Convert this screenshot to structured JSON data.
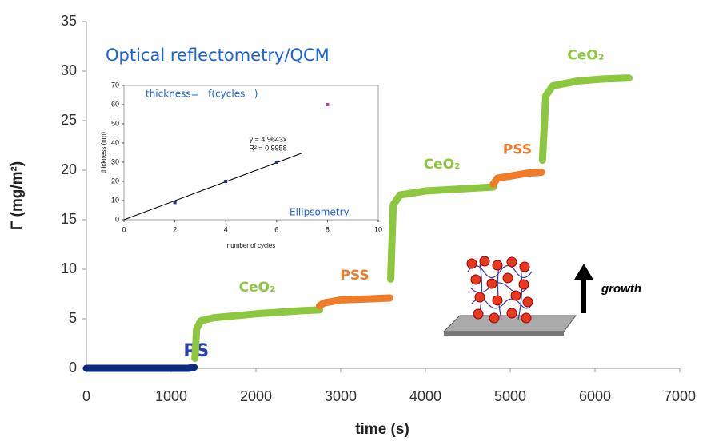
{
  "chart_data": [
    {
      "type": "line",
      "title": "Optical reflectometry/QCM",
      "x_label": "time (s)",
      "y_label": "Γ (mg/m²)",
      "xlim": [
        0,
        7000
      ],
      "xticks": [
        0,
        1000,
        2000,
        3000,
        4000,
        5000,
        6000,
        7000
      ],
      "ylim": [
        0,
        35
      ],
      "yticks": [
        0,
        5,
        10,
        15,
        20,
        25,
        30,
        35
      ],
      "annotations": [
        "growth"
      ],
      "series": [
        {
          "name": "PS",
          "color": "#0d2b7e",
          "x": [
            0,
            400,
            800,
            1200,
            1270
          ],
          "values": [
            0,
            0,
            0,
            0,
            0.1
          ]
        },
        {
          "name": "CeO₂",
          "color": "#8dc63f",
          "x": [
            1280,
            1300,
            1350,
            1500,
            2000,
            2500,
            2750
          ],
          "values": [
            1,
            4,
            4.8,
            5.1,
            5.5,
            5.8,
            5.9
          ]
        },
        {
          "name": "PSS",
          "color": "#f07c2a",
          "x": [
            2750,
            2800,
            3000,
            3300,
            3580
          ],
          "values": [
            6.3,
            6.6,
            6.9,
            7.0,
            7.1
          ]
        },
        {
          "name": "CeO₂",
          "color": "#8dc63f",
          "x": [
            3590,
            3620,
            3700,
            4000,
            4400,
            4800
          ],
          "values": [
            9,
            16.5,
            17.5,
            17.9,
            18.1,
            18.3
          ]
        },
        {
          "name": "PSS",
          "color": "#f07c2a",
          "x": [
            4800,
            4850,
            5000,
            5200,
            5370
          ],
          "values": [
            18.6,
            19.2,
            19.4,
            19.7,
            19.8
          ]
        },
        {
          "name": "CeO₂",
          "color": "#8dc63f",
          "x": [
            5380,
            5420,
            5500,
            5800,
            6100,
            6400
          ],
          "values": [
            21,
            27.5,
            28.5,
            29,
            29.2,
            29.3
          ]
        }
      ]
    },
    {
      "type": "scatter",
      "title": "thickness=   f(cycles   )",
      "x_label": "number of cycles",
      "y_label": "thickness (nm)",
      "xlim": [
        0,
        10
      ],
      "xticks": [
        0,
        2,
        4,
        6,
        8,
        10
      ],
      "ylim": [
        0,
        70
      ],
      "yticks": [
        0,
        10,
        20,
        30,
        40,
        50,
        60,
        70
      ],
      "annotations": [
        "y = 4,9643x",
        "R² = 0,9958",
        "Ellipsometry"
      ],
      "series": [
        {
          "color": "#1f2f8f",
          "x": [
            2,
            4,
            6
          ],
          "values": [
            9,
            20,
            30
          ]
        },
        {
          "color": "#c040a0",
          "x": [
            8
          ],
          "values": [
            60
          ]
        }
      ],
      "trendline": {
        "color": "#000000",
        "x": [
          0,
          7
        ],
        "values": [
          0,
          34.75
        ]
      }
    }
  ]
}
